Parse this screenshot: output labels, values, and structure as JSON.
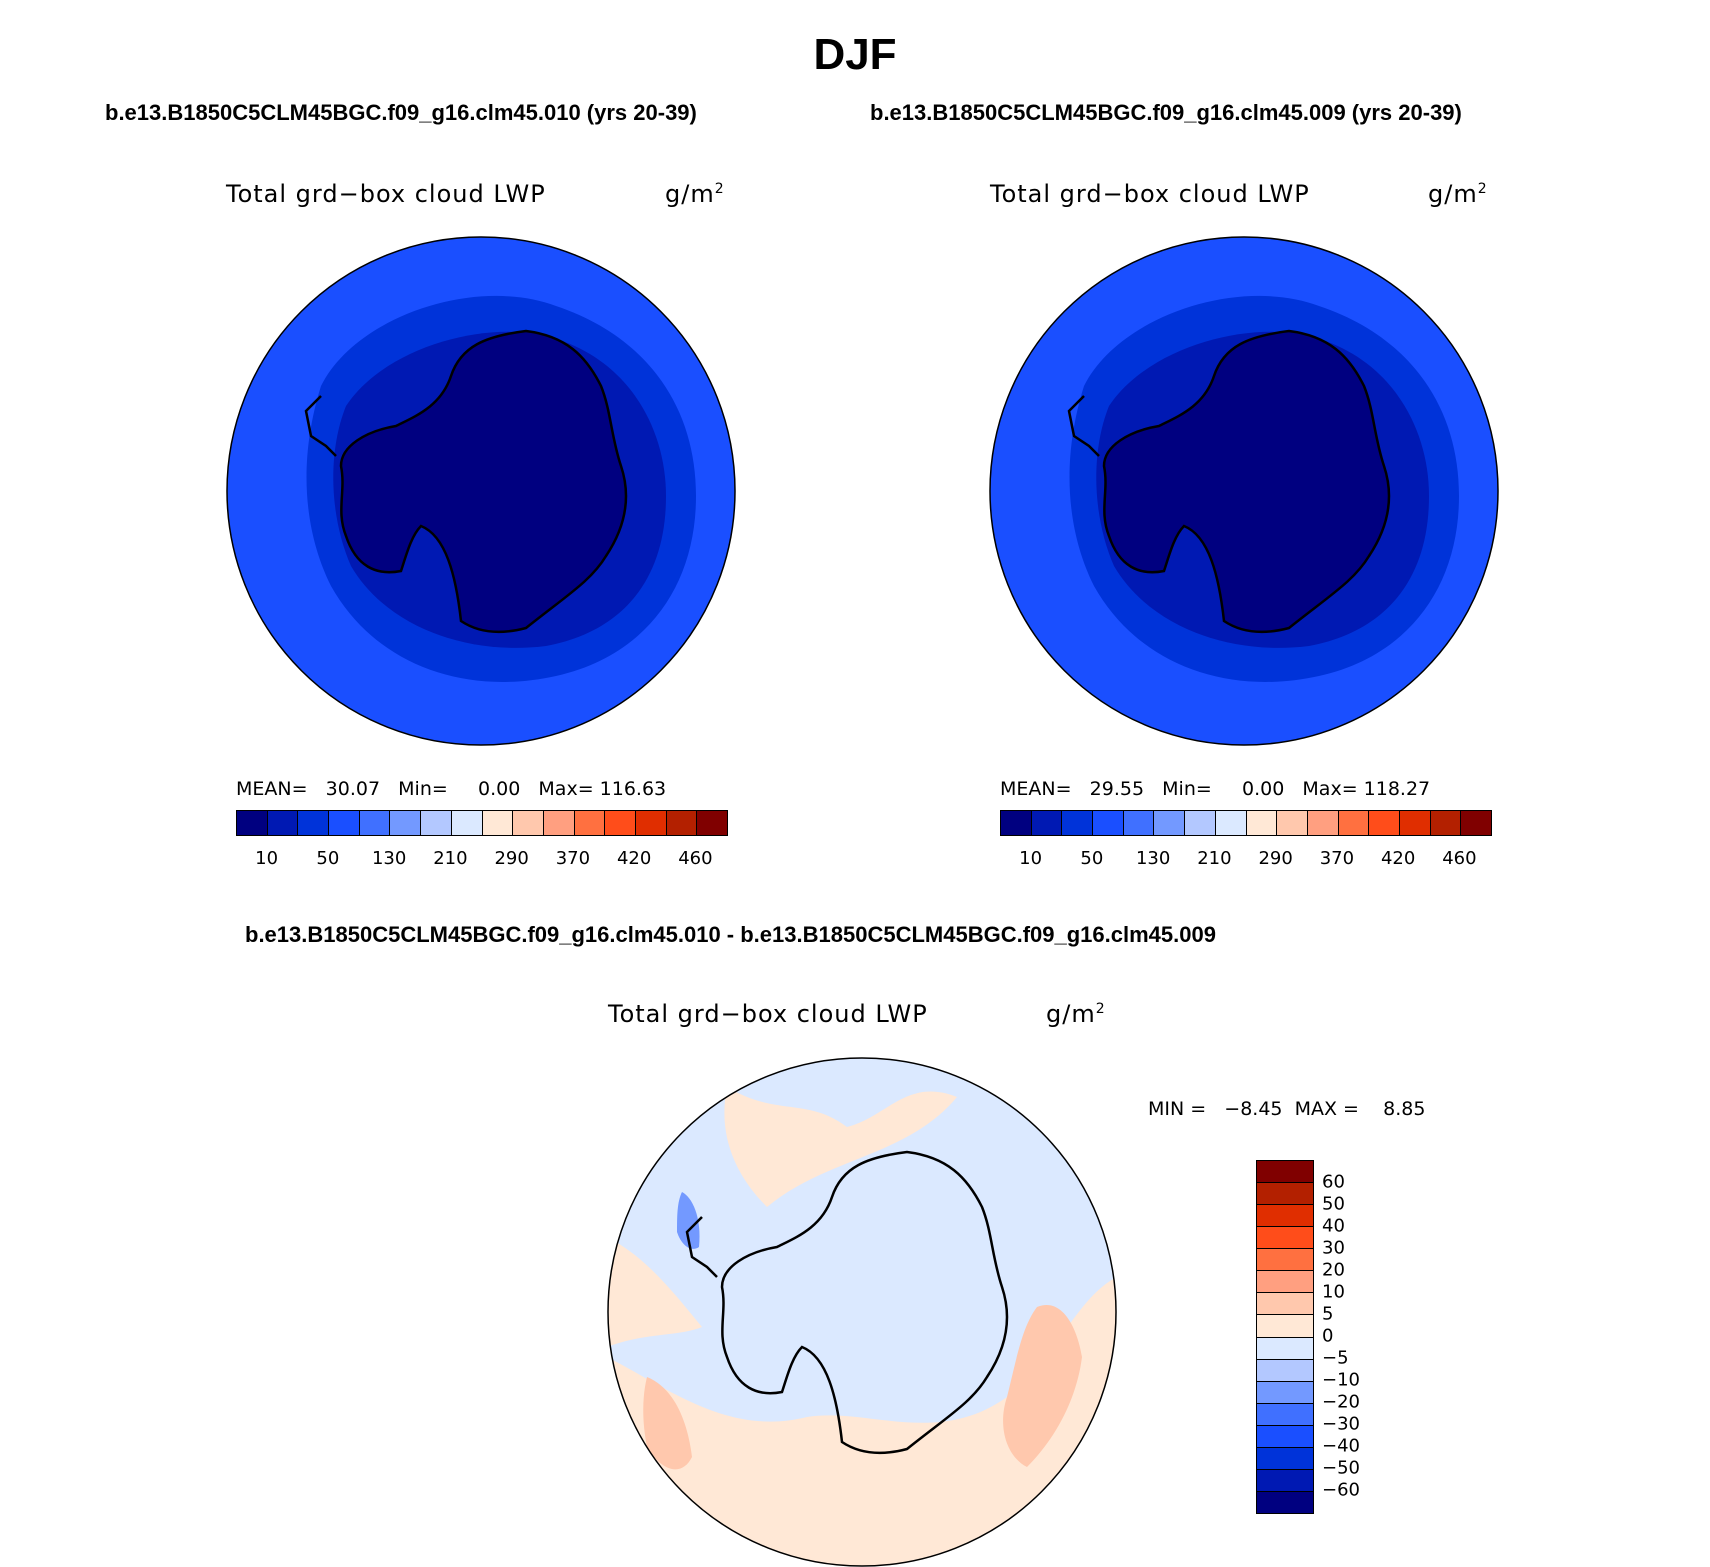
{
  "figure": {
    "title": "DJF",
    "subtitle_left": "b.e13.B1850C5CLM45BGC.f09_g16.clm45.010 (yrs 20-39)",
    "subtitle_right": "b.e13.B1850C5CLM45BGC.f09_g16.clm45.009 (yrs 20-39)",
    "diff_title": "b.e13.B1850C5CLM45BGC.f09_g16.clm45.010 - b.e13.B1850C5CLM45BGC.f09_g16.clm45.009"
  },
  "panels": {
    "left": {
      "variable": "Total grd−box cloud LWP",
      "units_base": "g/m",
      "units_exp": "2",
      "stats": "MEAN=   30.07   Min=     0.00   Max= 116.63"
    },
    "right": {
      "variable": "Total grd−box cloud LWP",
      "units_base": "g/m",
      "units_exp": "2",
      "stats": "MEAN=   29.55   Min=     0.00   Max= 118.27"
    },
    "diff": {
      "variable": "Total grd−box cloud LWP",
      "units_base": "g/m",
      "units_exp": "2",
      "stats": "MIN =   −8.45  MAX =    8.85"
    }
  },
  "colorbar_abs": {
    "colors": [
      "#000080",
      "#0019b3",
      "#0033d9",
      "#1a4fff",
      "#4070ff",
      "#7399ff",
      "#b3c8ff",
      "#dbe9ff",
      "#ffe8d6",
      "#ffc8ad",
      "#ff9f80",
      "#ff7040",
      "#ff4d1a",
      "#e02e00",
      "#b32000",
      "#800000"
    ],
    "labels": [
      "10",
      "50",
      "130",
      "210",
      "290",
      "370",
      "420",
      "460"
    ]
  },
  "colorbar_diff": {
    "colors": [
      "#800000",
      "#b32000",
      "#e02e00",
      "#ff4d1a",
      "#ff7040",
      "#ff9f80",
      "#ffc8ad",
      "#ffe8d6",
      "#dbe9ff",
      "#b3c8ff",
      "#7399ff",
      "#4070ff",
      "#1a4fff",
      "#0033d9",
      "#0019b3",
      "#000080"
    ],
    "labels": [
      "60",
      "50",
      "40",
      "30",
      "20",
      "10",
      "5",
      "0",
      "−5",
      "−10",
      "−20",
      "−30",
      "−40",
      "−50",
      "−60"
    ]
  },
  "map_colors": {
    "ocean_outer": "#1a4fff",
    "ring_mid": "#0033d9",
    "ring_inner": "#0019b3",
    "continent": "#000080",
    "diff_pos": "#ffe8d6",
    "diff_pos2": "#ffc8ad",
    "diff_neg": "#dbe9ff",
    "diff_neg2": "#7399ff"
  }
}
